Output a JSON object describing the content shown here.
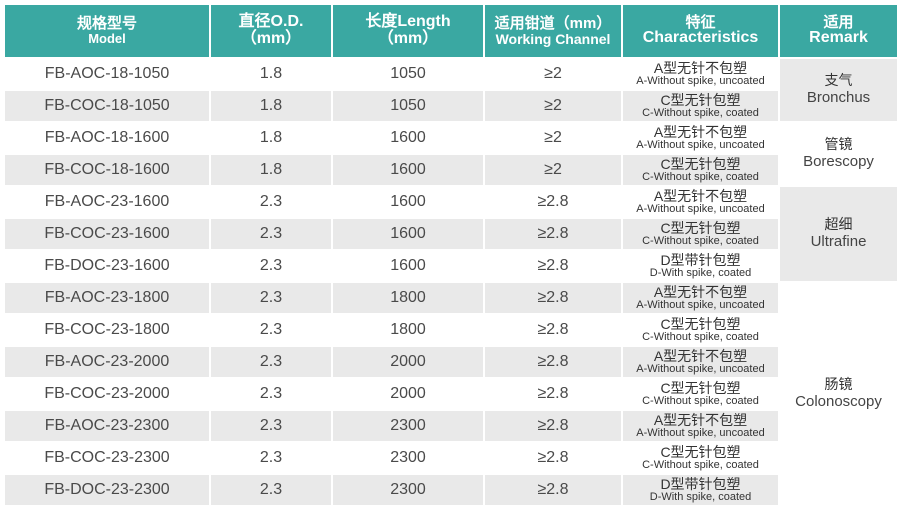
{
  "header": {
    "model_zh": "规格型号",
    "model_en": "Model",
    "od_zh": "直径O.D.",
    "od_en": "（mm）",
    "length_zh": "长度Length",
    "length_en": "（mm）",
    "channel_zh": "适用钳道（mm）",
    "channel_en": "Working Channel",
    "feature_zh": "特征",
    "feature_en": "Characteristics",
    "remark_zh": "适用",
    "remark_en": "Remark"
  },
  "rows": [
    {
      "model": "FB-AOC-18-1050",
      "od": "1.8",
      "length": "1050",
      "channel": "≥2",
      "feature_zh": "A型无针不包塑",
      "feature_en": "A-Without spike, uncoated"
    },
    {
      "model": "FB-COC-18-1050",
      "od": "1.8",
      "length": "1050",
      "channel": "≥2",
      "feature_zh": "C型无针包塑",
      "feature_en": "C-Without spike, coated"
    },
    {
      "model": "FB-AOC-18-1600",
      "od": "1.8",
      "length": "1600",
      "channel": "≥2",
      "feature_zh": "A型无针不包塑",
      "feature_en": "A-Without spike, uncoated"
    },
    {
      "model": "FB-COC-18-1600",
      "od": "1.8",
      "length": "1600",
      "channel": "≥2",
      "feature_zh": "C型无针包塑",
      "feature_en": "C-Without spike, coated"
    },
    {
      "model": "FB-AOC-23-1600",
      "od": "2.3",
      "length": "1600",
      "channel": "≥2.8",
      "feature_zh": "A型无针不包塑",
      "feature_en": "A-Without spike, uncoated"
    },
    {
      "model": "FB-COC-23-1600",
      "od": "2.3",
      "length": "1600",
      "channel": "≥2.8",
      "feature_zh": "C型无针包塑",
      "feature_en": "C-Without spike, coated"
    },
    {
      "model": "FB-DOC-23-1600",
      "od": "2.3",
      "length": "1600",
      "channel": "≥2.8",
      "feature_zh": "D型带针包塑",
      "feature_en": "D-With spike, coated"
    },
    {
      "model": "FB-AOC-23-1800",
      "od": "2.3",
      "length": "1800",
      "channel": "≥2.8",
      "feature_zh": "A型无针不包塑",
      "feature_en": "A-Without spike, uncoated"
    },
    {
      "model": "FB-COC-23-1800",
      "od": "2.3",
      "length": "1800",
      "channel": "≥2.8",
      "feature_zh": "C型无针包塑",
      "feature_en": "C-Without spike, coated"
    },
    {
      "model": "FB-AOC-23-2000",
      "od": "2.3",
      "length": "2000",
      "channel": "≥2.8",
      "feature_zh": "A型无针不包塑",
      "feature_en": "A-Without spike, uncoated"
    },
    {
      "model": "FB-COC-23-2000",
      "od": "2.3",
      "length": "2000",
      "channel": "≥2.8",
      "feature_zh": "C型无针包塑",
      "feature_en": "C-Without spike, coated"
    },
    {
      "model": "FB-AOC-23-2300",
      "od": "2.3",
      "length": "2300",
      "channel": "≥2.8",
      "feature_zh": "A型无针不包塑",
      "feature_en": "A-Without spike, uncoated"
    },
    {
      "model": "FB-COC-23-2300",
      "od": "2.3",
      "length": "2300",
      "channel": "≥2.8",
      "feature_zh": "C型无针包塑",
      "feature_en": "C-Without spike, coated"
    },
    {
      "model": "FB-DOC-23-2300",
      "od": "2.3",
      "length": "2300",
      "channel": "≥2.8",
      "feature_zh": "D型带针包塑",
      "feature_en": "D-With spike, coated"
    }
  ],
  "remarks": [
    {
      "zh": "支气",
      "en": "Bronchus"
    },
    {
      "zh": "管镜",
      "en": "Borescopy"
    },
    {
      "zh": "超细",
      "en": "Ultrafine"
    },
    {
      "zh": "肠镜",
      "en": "Colonoscopy"
    }
  ],
  "colors": {
    "header_bg": "#3aa8a2",
    "stripe": "#e9e9e9"
  }
}
